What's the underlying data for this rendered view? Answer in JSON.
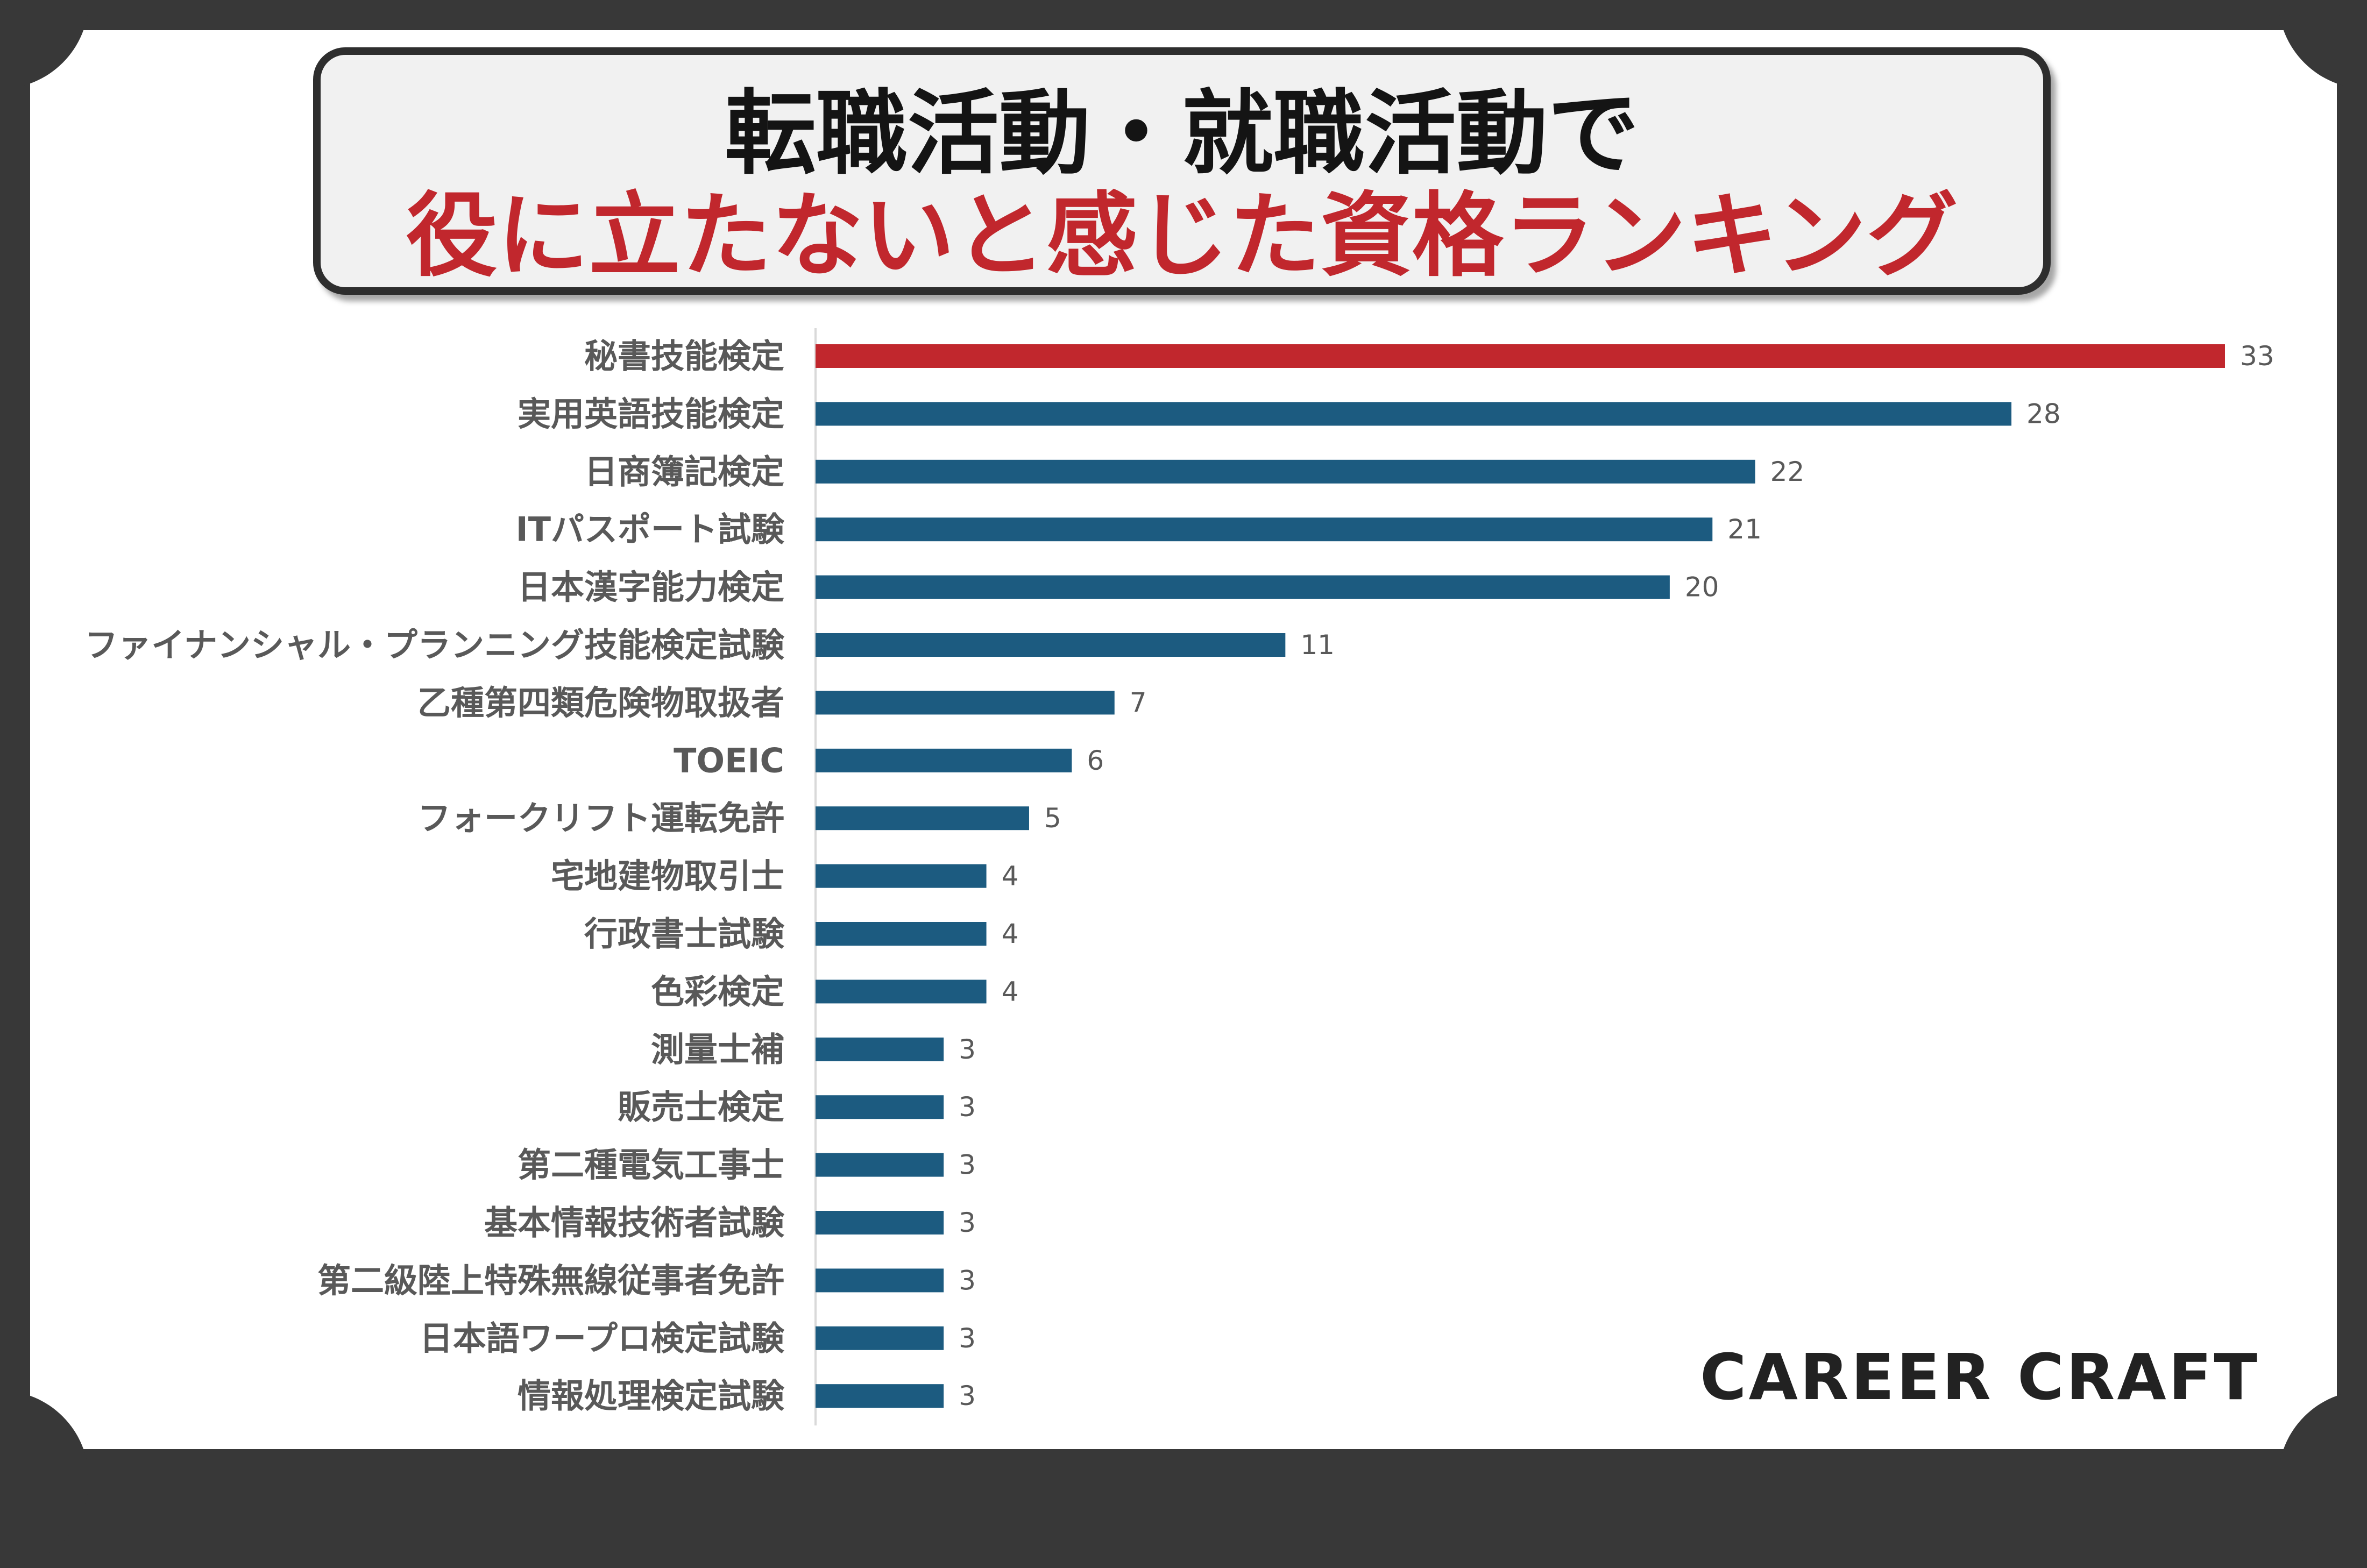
{
  "title": {
    "line1": "転職活動・就職活動で",
    "line2": "役に立たないと感じた資格ランキング"
  },
  "logo_text": "CAREER CRAFT",
  "colors": {
    "frame": "#383838",
    "highlight_bar": "#c1272d",
    "bar": "#1c5b80",
    "label_text": "#595959",
    "title_text": "#141414",
    "title_accent": "#c1272d"
  },
  "chart_data": {
    "type": "bar",
    "orientation": "horizontal",
    "title": "転職活動・就職活動で役に立たないと感じた資格ランキング",
    "xlabel": "",
    "ylabel": "",
    "xlim": [
      0,
      33
    ],
    "grid": false,
    "legend": "none",
    "data_labels": true,
    "highlight_index": 0,
    "categories": [
      "秘書技能検定",
      "実用英語技能検定",
      "日商簿記検定",
      "ITパスポート試験",
      "日本漢字能力検定",
      "ファイナンシャル・プランニング技能検定試験",
      "乙種第四類危険物取扱者",
      "TOEIC",
      "フォークリフト運転免許",
      "宅地建物取引士",
      "行政書士試験",
      "色彩検定",
      "測量士補",
      "販売士検定",
      "第二種電気工事士",
      "基本情報技術者試験",
      "第二級陸上特殊無線従事者免許",
      "日本語ワープロ検定試験",
      "情報処理検定試験"
    ],
    "values": [
      33,
      28,
      22,
      21,
      20,
      11,
      7,
      6,
      5,
      4,
      4,
      4,
      3,
      3,
      3,
      3,
      3,
      3,
      3
    ]
  }
}
